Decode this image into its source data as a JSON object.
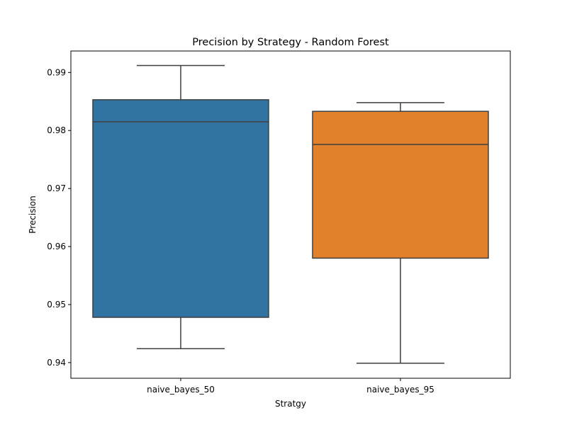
{
  "chart_data": {
    "type": "boxplot",
    "title": "Precision by Strategy - Random Forest",
    "xlabel": "Stratgy",
    "ylabel": "Precision",
    "ylim": [
      0.9373,
      0.9937
    ],
    "yticks": [
      0.94,
      0.95,
      0.96,
      0.97,
      0.98,
      0.99
    ],
    "ytick_labels": [
      "0.94",
      "0.95",
      "0.96",
      "0.97",
      "0.98",
      "0.99"
    ],
    "grid": false,
    "legend": "none",
    "categories": [
      "naive_bayes_50",
      "naive_bayes_95"
    ],
    "boxes": [
      {
        "category": "naive_bayes_50",
        "whisker_low": 0.9424,
        "q1": 0.9478,
        "median": 0.9815,
        "q3": 0.9853,
        "whisker_high": 0.9912,
        "color": "#3274a1"
      },
      {
        "category": "naive_bayes_95",
        "whisker_low": 0.9399,
        "q1": 0.958,
        "median": 0.9776,
        "q3": 0.9833,
        "whisker_high": 0.9848,
        "color": "#e1812c"
      }
    ],
    "line_color": "#3f3f3f"
  }
}
